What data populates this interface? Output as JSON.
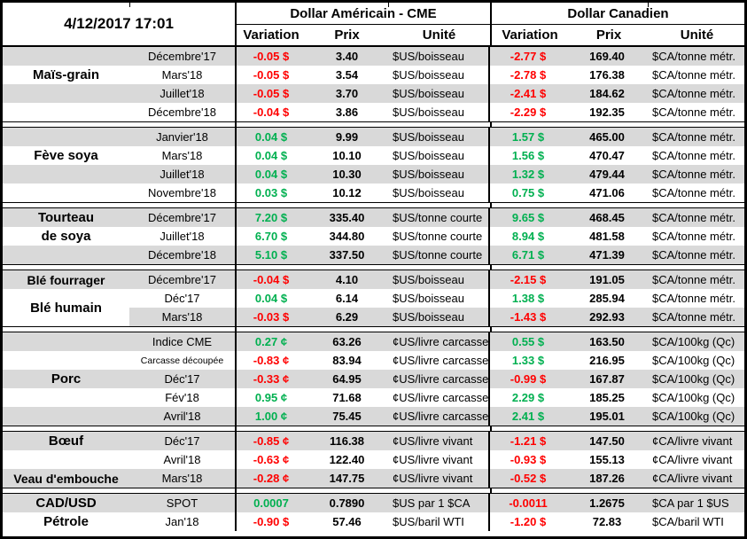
{
  "report": {
    "timestamp": "4/12/2017 17:01"
  },
  "header": {
    "usd_group": "Dollar Américain - CME",
    "cad_group": "Dollar Canadien",
    "variation": "Variation",
    "prix": "Prix",
    "unite": "Unité"
  },
  "colors": {
    "positive_green": "#00B050",
    "negative_red": "#FF0000",
    "row_stripe_gray": "#D9D9D9",
    "border_black": "#000000"
  },
  "sections": [
    {
      "id": "mais-grain",
      "rows": [
        {
          "label": "",
          "month": "Décembre'17",
          "us_variation": "-0.05 $",
          "us_price": "3.40",
          "us_unit": "$US/boisseau",
          "ca_variation": "-2.77 $",
          "ca_price": "169.40",
          "ca_unit": "$CA/tonne métr."
        },
        {
          "label": "Maïs-grain",
          "month": "Mars'18",
          "us_variation": "-0.05 $",
          "us_price": "3.54",
          "us_unit": "$US/boisseau",
          "ca_variation": "-2.78 $",
          "ca_price": "176.38",
          "ca_unit": "$CA/tonne métr."
        },
        {
          "label": "",
          "month": "Juillet'18",
          "us_variation": "-0.05 $",
          "us_price": "3.70",
          "us_unit": "$US/boisseau",
          "ca_variation": "-2.41 $",
          "ca_price": "184.62",
          "ca_unit": "$CA/tonne métr."
        },
        {
          "label": "",
          "month": "Décembre'18",
          "us_variation": "-0.04 $",
          "us_price": "3.86",
          "us_unit": "$US/boisseau",
          "ca_variation": "-2.29 $",
          "ca_price": "192.35",
          "ca_unit": "$CA/tonne métr."
        }
      ]
    },
    {
      "id": "feve-soya",
      "rows": [
        {
          "label": "",
          "month": "Janvier'18",
          "us_variation": "0.04 $",
          "us_price": "9.99",
          "us_unit": "$US/boisseau",
          "ca_variation": "1.57 $",
          "ca_price": "465.00",
          "ca_unit": "$CA/tonne métr."
        },
        {
          "label": "Fève soya",
          "month": "Mars'18",
          "us_variation": "0.04 $",
          "us_price": "10.10",
          "us_unit": "$US/boisseau",
          "ca_variation": "1.56 $",
          "ca_price": "470.47",
          "ca_unit": "$CA/tonne métr."
        },
        {
          "label": "",
          "month": "Juillet'18",
          "us_variation": "0.04 $",
          "us_price": "10.30",
          "us_unit": "$US/boisseau",
          "ca_variation": "1.32 $",
          "ca_price": "479.44",
          "ca_unit": "$CA/tonne métr."
        },
        {
          "label": "",
          "month": "Novembre'18",
          "us_variation": "0.03 $",
          "us_price": "10.12",
          "us_unit": "$US/boisseau",
          "ca_variation": "0.75 $",
          "ca_price": "471.06",
          "ca_unit": "$CA/tonne métr."
        }
      ]
    },
    {
      "id": "tourteau-de-soya",
      "rows": [
        {
          "label": "Tourteau",
          "month": "Décembre'17",
          "us_variation": "7.20 $",
          "us_price": "335.40",
          "us_unit": "$US/tonne courte",
          "ca_variation": "9.65 $",
          "ca_price": "468.45",
          "ca_unit": "$CA/tonne métr."
        },
        {
          "label": "de soya",
          "month": "Juillet'18",
          "us_variation": "6.70 $",
          "us_price": "344.80",
          "us_unit": "$US/tonne courte",
          "ca_variation": "8.94 $",
          "ca_price": "481.58",
          "ca_unit": "$CA/tonne métr."
        },
        {
          "label": "",
          "month": "Décembre'18",
          "us_variation": "5.10 $",
          "us_price": "337.50",
          "us_unit": "$US/tonne courte",
          "ca_variation": "6.71 $",
          "ca_price": "471.39",
          "ca_unit": "$CA/tonne métr."
        }
      ]
    },
    {
      "id": "ble",
      "merged_label": "Blé humain",
      "rows": [
        {
          "label": "Blé fourrager",
          "month": "Décembre'17",
          "us_variation": "-0.04 $",
          "us_price": "4.10",
          "us_unit": "$US/boisseau",
          "ca_variation": "-2.15 $",
          "ca_price": "191.05",
          "ca_unit": "$CA/tonne métr."
        },
        {
          "label": "",
          "month": "Déc'17",
          "us_variation": "0.04 $",
          "us_price": "6.14",
          "us_unit": "$US/boisseau",
          "ca_variation": "1.38 $",
          "ca_price": "285.94",
          "ca_unit": "$CA/tonne métr."
        },
        {
          "label": "",
          "month": "Mars'18",
          "us_variation": "-0.03 $",
          "us_price": "6.29",
          "us_unit": "$US/boisseau",
          "ca_variation": "-1.43 $",
          "ca_price": "292.93",
          "ca_unit": "$CA/tonne métr."
        }
      ]
    },
    {
      "id": "porc",
      "rows": [
        {
          "label": "",
          "month": "Indice CME",
          "us_variation": "0.27 ¢",
          "us_price": "63.26",
          "us_unit": "¢US/livre carcasse",
          "ca_variation": "0.55 $",
          "ca_price": "163.50",
          "ca_unit": "$CA/100kg (Qc)"
        },
        {
          "label": "",
          "month": "Carcasse découpée",
          "us_variation": "-0.83 ¢",
          "us_price": "83.94",
          "us_unit": "¢US/livre carcasse",
          "ca_variation": "1.33 $",
          "ca_price": "216.95",
          "ca_unit": "$CA/100kg (Qc)"
        },
        {
          "label": "Porc",
          "month": "Déc'17",
          "us_variation": "-0.33 ¢",
          "us_price": "64.95",
          "us_unit": "¢US/livre carcasse",
          "ca_variation": "-0.99 $",
          "ca_price": "167.87",
          "ca_unit": "$CA/100kg (Qc)"
        },
        {
          "label": "",
          "month": "Fév'18",
          "us_variation": "0.95 ¢",
          "us_price": "71.68",
          "us_unit": "¢US/livre carcasse",
          "ca_variation": "2.29 $",
          "ca_price": "185.25",
          "ca_unit": "$CA/100kg (Qc)"
        },
        {
          "label": "",
          "month": "Avril'18",
          "us_variation": "1.00 ¢",
          "us_price": "75.45",
          "us_unit": "¢US/livre carcasse",
          "ca_variation": "2.41 $",
          "ca_price": "195.01",
          "ca_unit": "$CA/100kg (Qc)"
        }
      ]
    },
    {
      "id": "boeuf-veau",
      "rows": [
        {
          "label": "Bœuf",
          "month": "Déc'17",
          "us_variation": "-0.85 ¢",
          "us_price": "116.38",
          "us_unit": "¢US/livre vivant",
          "ca_variation": "-1.21 $",
          "ca_price": "147.50",
          "ca_unit": "¢CA/livre vivant"
        },
        {
          "label": "",
          "month": "Avril'18",
          "us_variation": "-0.63 ¢",
          "us_price": "122.40",
          "us_unit": "¢US/livre vivant",
          "ca_variation": "-0.93 $",
          "ca_price": "155.13",
          "ca_unit": "¢CA/livre vivant"
        },
        {
          "label": "Veau d'embouche",
          "month": "Mars'18",
          "us_variation": "-0.28 ¢",
          "us_price": "147.75",
          "us_unit": "¢US/livre vivant",
          "ca_variation": "-0.52 $",
          "ca_price": "187.26",
          "ca_unit": "¢CA/livre vivant"
        }
      ]
    },
    {
      "id": "cadusd-petrole",
      "rows": [
        {
          "label": "CAD/USD",
          "month": "SPOT",
          "us_variation": "0.0007",
          "us_price": "0.7890",
          "us_unit": "$US par 1 $CA",
          "ca_variation": "-0.0011",
          "ca_price": "1.2675",
          "ca_unit": "$CA par 1 $US"
        },
        {
          "label": "Pétrole",
          "month": "Jan'18",
          "us_variation": "-0.90 $",
          "us_price": "57.46",
          "us_unit": "$US/baril WTI",
          "ca_variation": "-1.20 $",
          "ca_price": "72.83",
          "ca_unit": "$CA/baril WTI"
        }
      ]
    }
  ]
}
